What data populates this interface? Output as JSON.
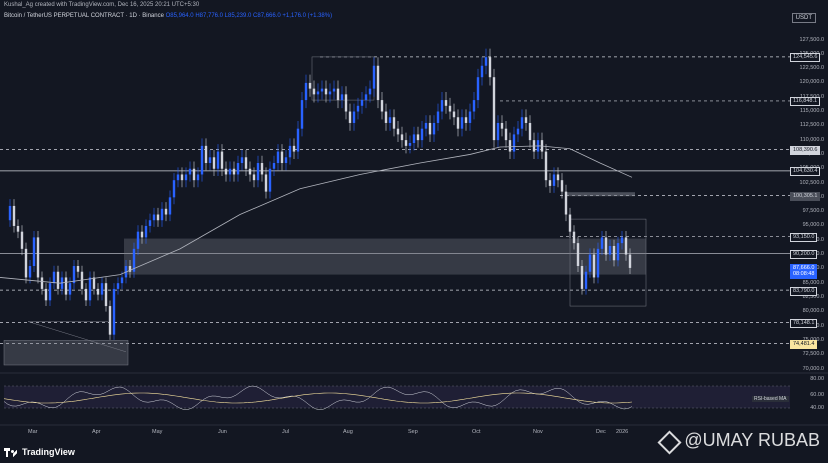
{
  "header": {
    "created_by": "Kushal_Ag created with TradingView.com, Dec 16, 2025 20:21 UTC+5:30",
    "symbol": "Bitcoin / TetherUS PERPETUAL CONTRACT · 1D · Binance",
    "ohlc": "O85,964.0 H87,776.0 L85,239.0 C87,666.0 +1,176.0 (+1.38%)",
    "currency": "USDT"
  },
  "price_axis": {
    "labels": [
      "127,500.0",
      "125,000.0",
      "122,500.0",
      "120,000.0",
      "117,500.0",
      "115,000.0",
      "112,500.0",
      "110,000.0",
      "107,500.0",
      "105,000.0",
      "102,500.0",
      "100,000.0",
      "97,500.0",
      "95,000.0",
      "92,500.0",
      "90,000.0",
      "87,500.0",
      "85,000.0",
      "82,500.0",
      "80,000.0",
      "77,500.0",
      "75,000.0",
      "72,500.0",
      "70,000.0"
    ],
    "tags": [
      {
        "text": "124,545.6",
        "bg": "#131722",
        "fg": "#d1d4dc",
        "border": "#d1d4dc"
      },
      {
        "text": "116,848.1",
        "bg": "#131722",
        "fg": "#d1d4dc",
        "border": "#d1d4dc"
      },
      {
        "text": "108,390.6",
        "bg": "#d1d4dc",
        "fg": "#131722",
        "border": "#d1d4dc"
      },
      {
        "text": "104,630.4",
        "bg": "#131722",
        "fg": "#d1d4dc",
        "border": "#d1d4dc"
      },
      {
        "text": "100,305.1",
        "bg": "#4a4e59",
        "fg": "#d1d4dc",
        "border": "#4a4e59"
      },
      {
        "text": "93,150.0",
        "bg": "#131722",
        "fg": "#d1d4dc",
        "border": "#d1d4dc"
      },
      {
        "text": "90,200.0",
        "bg": "#131722",
        "fg": "#d1d4dc",
        "border": "#d1d4dc"
      },
      {
        "text": "87,666.0",
        "bg": "#2962ff",
        "fg": "#ffffff",
        "border": "#2962ff"
      },
      {
        "text": "08:08:48",
        "bg": "#2962ff",
        "fg": "#ffffff",
        "border": "#2962ff"
      },
      {
        "text": "83,790.0",
        "bg": "#131722",
        "fg": "#d1d4dc",
        "border": "#d1d4dc"
      },
      {
        "text": "78,148.1",
        "bg": "#131722",
        "fg": "#d1d4dc",
        "border": "#d1d4dc"
      },
      {
        "text": "74,481.4",
        "bg": "#f9e5a0",
        "fg": "#131722",
        "border": "#f9e5a0"
      }
    ]
  },
  "rsi_axis": {
    "labels": [
      "80.00",
      "60.00",
      "40.00"
    ],
    "indicator_label": "RSI-based MA"
  },
  "time_axis": {
    "months": [
      "Mar",
      "Apr",
      "May",
      "Jun",
      "Jul",
      "Aug",
      "Sep",
      "Oct",
      "Nov",
      "Dec",
      "2026"
    ]
  },
  "footer": {
    "brand": "TradingView"
  },
  "watermark": {
    "text": "@UMAY RUBAB"
  },
  "colors": {
    "background": "#131722",
    "candle_up": "#2962ff",
    "candle_down": "#d1d4dc",
    "ma": "#b2b5be",
    "accent": "#2962ff"
  }
}
